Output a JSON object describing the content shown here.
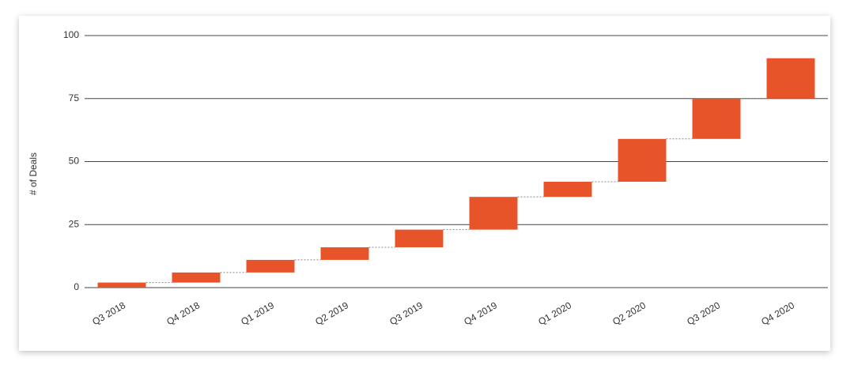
{
  "chart_data": {
    "type": "waterfall",
    "ylabel": "# of Deals",
    "categories": [
      "Q3 2018",
      "Q4 2018",
      "Q1 2019",
      "Q2 2019",
      "Q3 2019",
      "Q4 2019",
      "Q1 2020",
      "Q2 2020",
      "Q3 2020",
      "Q4 2020"
    ],
    "values": [
      2,
      4,
      5,
      5,
      7,
      13,
      6,
      17,
      16,
      16
    ],
    "color": "#e8542a",
    "ylim": [
      0,
      100
    ],
    "yticks": [
      0,
      25,
      50,
      75,
      100
    ],
    "grid": true
  }
}
